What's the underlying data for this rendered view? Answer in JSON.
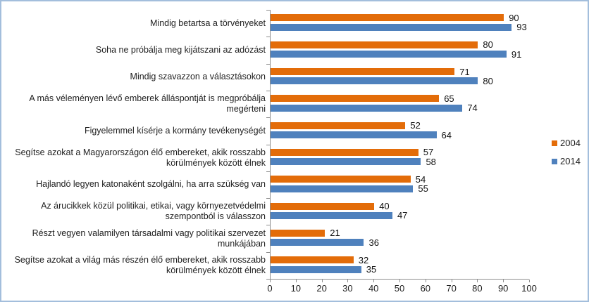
{
  "chart_data": {
    "type": "bar",
    "orientation": "horizontal",
    "title": "",
    "xlabel": "",
    "ylabel": "",
    "categories": [
      "Mindig betartsa a törvényeket",
      "Soha ne próbálja meg kijátszani az adózást",
      "Mindig szavazzon a választásokon",
      "A más véleményen lévő emberek álláspontját is megpróbálja megérteni",
      "Figyelemmel kísérje a kormány tevékenységét",
      "Segítse azokat a Magyarországon élő embereket, akik rosszabb körülmények között élnek",
      "Hajlandó legyen katonaként szolgálni, ha arra szükség van",
      "Az árucikkek közül politikai, etikai, vagy környezetvédelmi szempontból is válasszon",
      "Részt vegyen valamilyen társadalmi vagy politikai szervezet munkájában",
      "Segítse azokat a világ más részén élő embereket, akik rosszabb körülmények között élnek"
    ],
    "series": [
      {
        "name": "2004",
        "color": "#E36C09",
        "values": [
          90,
          80,
          71,
          65,
          52,
          57,
          54,
          40,
          21,
          32
        ]
      },
      {
        "name": "2014",
        "color": "#4F81BD",
        "values": [
          93,
          91,
          80,
          74,
          64,
          58,
          55,
          47,
          36,
          35
        ]
      }
    ],
    "xlim": [
      0,
      100
    ],
    "xticks": [
      0,
      10,
      20,
      30,
      40,
      50,
      60,
      70,
      80,
      90,
      100
    ],
    "grid": false,
    "value_labels": true,
    "legend_position": "middle-right"
  },
  "colors": {
    "frame_border": "#A3BEDC",
    "axis": "#8E8E8E",
    "text": "#1F1F1F",
    "background": "#FFFFFF"
  }
}
